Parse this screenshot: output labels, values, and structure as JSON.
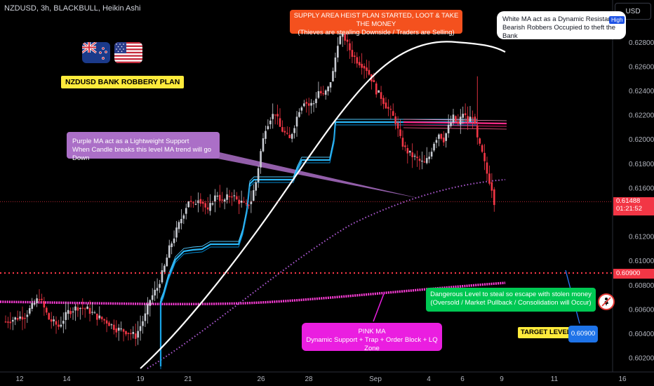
{
  "header": {
    "symbol_line": "NZDUSD, 3h, BLACKBULL, Heikin Ashi",
    "currency": "USD"
  },
  "title_badge": "NZDUSD BANK ROBBERY PLAN",
  "annotations": {
    "supply": {
      "line1": "SUPPLY AREA HEIST PLAN STARTED, LOOT & TAKE THE MONEY",
      "line2": "(Thieves are stealing Downside / Traders are Selling)",
      "color": "#f4511e"
    },
    "white_ma": {
      "line1": "White MA act as a Dynamic Resistance",
      "line2": "Bearish Robbers Occupied to theft the Bank",
      "high_badge": "High"
    },
    "purple_ma": {
      "line1": "Purple MA act as a Lightweight Support",
      "line2": "When Candle breaks this level MA trend will go Down",
      "color": "#ab6fc7"
    },
    "pink_ma": {
      "line1": "PINK MA",
      "line2": "Dynamic Support + Trap + Order Block + LQ Zone",
      "color": "#ea1ee0"
    },
    "danger": {
      "line1": "Dangerous Level to steal so escape with stolen money",
      "line2": "(Oversold / Market Pullback / Consolidation will Occur)",
      "color": "#00c853"
    },
    "target": {
      "label": "TARGET LEVEL",
      "value": "0.60900"
    }
  },
  "price_labels": {
    "current_price": "0.61488",
    "countdown": "01:21:52",
    "target_line": "0.60900",
    "current_color": "#f23645",
    "target_color": "#f23645"
  },
  "colors": {
    "up": "#c9ccd3",
    "down": "#f23645",
    "white_ma": "#ffffff",
    "blue_band": "#29b6f6",
    "pink_band": "#ff2b8a",
    "purple_ma": "#b05ad6",
    "pink_ma": "#ff3dd8"
  },
  "chart_data": {
    "type": "candlestick",
    "ylim": [
      0.601,
      0.63
    ],
    "y_ticks": [
      "0.62800",
      "0.62600",
      "0.62400",
      "0.62200",
      "0.62000",
      "0.61800",
      "0.61600",
      "0.61400",
      "0.61200",
      "0.61000",
      "0.60800",
      "0.60600",
      "0.60400",
      "0.60200"
    ],
    "y_tick_values": [
      0.628,
      0.626,
      0.624,
      0.622,
      0.62,
      0.618,
      0.616,
      0.614,
      0.612,
      0.61,
      0.608,
      0.606,
      0.604,
      0.602
    ],
    "x_ticks": [
      "12",
      "14",
      "19",
      "21",
      "26",
      "28",
      "Sep",
      "4",
      "6",
      "9",
      "11",
      "16"
    ],
    "current_price": 0.61488,
    "target_level": 0.609,
    "series_path": [
      [
        0,
        0.605
      ],
      [
        8,
        0.6055
      ],
      [
        14,
        0.607
      ],
      [
        18,
        0.6052
      ],
      [
        22,
        0.6046
      ],
      [
        26,
        0.6058
      ],
      [
        30,
        0.6062
      ],
      [
        34,
        0.606
      ],
      [
        38,
        0.6054
      ],
      [
        42,
        0.605
      ],
      [
        46,
        0.6044
      ],
      [
        50,
        0.6042
      ],
      [
        54,
        0.6038
      ],
      [
        58,
        0.6055
      ],
      [
        60,
        0.6068
      ],
      [
        63,
        0.6078
      ],
      [
        66,
        0.6095
      ],
      [
        68,
        0.611
      ],
      [
        70,
        0.612
      ],
      [
        72,
        0.613
      ],
      [
        74,
        0.614
      ],
      [
        76,
        0.615
      ],
      [
        78,
        0.6145
      ],
      [
        80,
        0.6152
      ],
      [
        82,
        0.6148
      ],
      [
        84,
        0.614
      ],
      [
        86,
        0.615
      ],
      [
        88,
        0.6155
      ],
      [
        90,
        0.6148
      ],
      [
        92,
        0.6152
      ],
      [
        94,
        0.6155
      ],
      [
        96,
        0.615
      ],
      [
        98,
        0.6148
      ],
      [
        100,
        0.6145
      ],
      [
        102,
        0.615
      ],
      [
        104,
        0.6165
      ],
      [
        106,
        0.619
      ],
      [
        108,
        0.621
      ],
      [
        110,
        0.6218
      ],
      [
        112,
        0.6222
      ],
      [
        114,
        0.621
      ],
      [
        116,
        0.6205
      ],
      [
        118,
        0.62
      ],
      [
        120,
        0.6212
      ],
      [
        122,
        0.6225
      ],
      [
        124,
        0.6232
      ],
      [
        126,
        0.6228
      ],
      [
        128,
        0.623
      ],
      [
        130,
        0.624
      ],
      [
        132,
        0.6236
      ],
      [
        134,
        0.6242
      ],
      [
        136,
        0.6255
      ],
      [
        138,
        0.628
      ],
      [
        140,
        0.6288
      ],
      [
        142,
        0.6278
      ],
      [
        144,
        0.627
      ],
      [
        146,
        0.6265
      ],
      [
        148,
        0.6262
      ],
      [
        150,
        0.6258
      ],
      [
        152,
        0.625
      ],
      [
        154,
        0.624
      ],
      [
        156,
        0.6235
      ],
      [
        158,
        0.6228
      ],
      [
        160,
        0.6222
      ],
      [
        162,
        0.6215
      ],
      [
        164,
        0.62
      ],
      [
        166,
        0.6192
      ],
      [
        168,
        0.6188
      ],
      [
        170,
        0.6185
      ],
      [
        172,
        0.6182
      ],
      [
        174,
        0.618
      ],
      [
        176,
        0.6186
      ],
      [
        178,
        0.6198
      ],
      [
        180,
        0.6205
      ],
      [
        182,
        0.62
      ],
      [
        184,
        0.621
      ],
      [
        186,
        0.6218
      ],
      [
        188,
        0.6212
      ],
      [
        190,
        0.6222
      ],
      [
        192,
        0.6215
      ],
      [
        194,
        0.622
      ],
      [
        196,
        0.62
      ],
      [
        198,
        0.6188
      ],
      [
        200,
        0.6172
      ],
      [
        202,
        0.616
      ],
      [
        203,
        0.6149
      ]
    ]
  }
}
